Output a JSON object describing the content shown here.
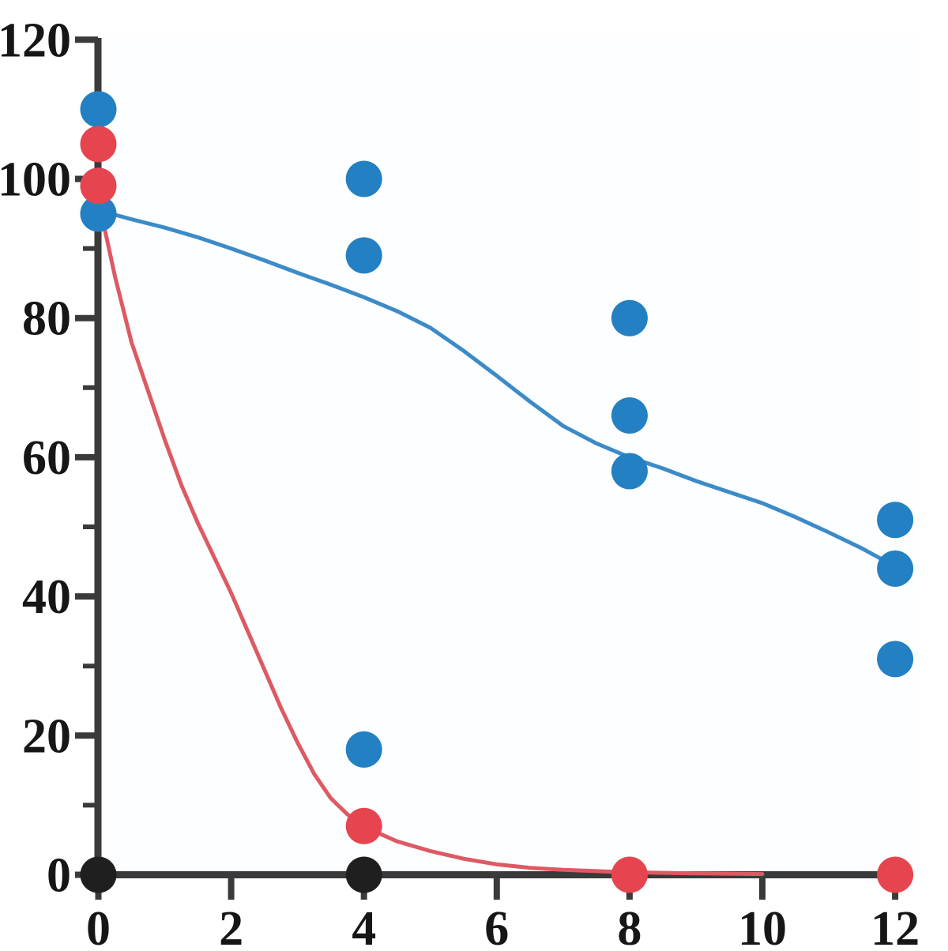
{
  "chart_data": {
    "type": "scatter",
    "title": "",
    "xlabel": "",
    "ylabel": "",
    "xlim": [
      0,
      12
    ],
    "ylim": [
      0,
      120
    ],
    "grid": false,
    "legend": null,
    "x_ticks": {
      "major": [
        0,
        2,
        4,
        6,
        8,
        10,
        12
      ],
      "labels": [
        "0",
        "2",
        "4",
        "6",
        "8",
        "10",
        "12"
      ]
    },
    "y_ticks": {
      "major": [
        0,
        20,
        40,
        60,
        80,
        100,
        120
      ],
      "labels": [
        "0",
        "20",
        "40",
        "60",
        "80",
        "100",
        "120"
      ],
      "minor": [
        10,
        30,
        50,
        70,
        90,
        110
      ]
    },
    "series": [
      {
        "name": "blue-series",
        "marker": "circle",
        "color": "#2380c2",
        "points": [
          [
            0,
            110
          ],
          [
            0,
            95
          ],
          [
            4,
            100
          ],
          [
            4,
            89
          ],
          [
            4,
            18
          ],
          [
            8,
            80
          ],
          [
            8,
            66
          ],
          [
            8,
            58
          ],
          [
            12,
            51
          ],
          [
            12,
            44
          ],
          [
            12,
            31
          ]
        ]
      },
      {
        "name": "red-series",
        "marker": "circle",
        "color": "#e64550",
        "points": [
          [
            0,
            105
          ],
          [
            0,
            99
          ],
          [
            4,
            7
          ],
          [
            8,
            0
          ],
          [
            12,
            0
          ]
        ]
      },
      {
        "name": "black-series",
        "marker": "circle",
        "color": "#1f1f1f",
        "points": [
          [
            0,
            0
          ],
          [
            4,
            0
          ]
        ]
      }
    ],
    "trend_lines": [
      {
        "series": "red-series",
        "model": "one-phase-decay",
        "color": "#dd5a63",
        "points": [
          [
            0,
            97
          ],
          [
            0.25,
            86
          ],
          [
            0.5,
            76.5
          ],
          [
            0.75,
            69.5
          ],
          [
            1,
            62.5
          ],
          [
            1.25,
            56
          ],
          [
            1.5,
            50.5
          ],
          [
            1.75,
            45.5
          ],
          [
            2,
            40.5
          ],
          [
            2.25,
            35
          ],
          [
            2.5,
            29.5
          ],
          [
            2.75,
            24
          ],
          [
            3,
            19
          ],
          [
            3.25,
            14.5
          ],
          [
            3.5,
            11
          ],
          [
            3.75,
            8.7
          ],
          [
            4,
            6.9
          ],
          [
            4.5,
            4.8
          ],
          [
            5,
            3.4
          ],
          [
            5.5,
            2.3
          ],
          [
            6,
            1.5
          ],
          [
            6.5,
            1.0
          ],
          [
            7,
            0.7
          ],
          [
            8,
            0.35
          ],
          [
            9,
            0.2
          ],
          [
            10,
            0.1
          ]
        ]
      },
      {
        "series": "blue-series",
        "model": "exponential-decay",
        "color": "#3c8bc8",
        "points": [
          [
            0,
            95.5
          ],
          [
            0.5,
            94.2
          ],
          [
            1,
            93
          ],
          [
            1.5,
            91.6
          ],
          [
            2,
            90
          ],
          [
            2.5,
            88.3
          ],
          [
            3,
            86.5
          ],
          [
            3.5,
            84.8
          ],
          [
            4,
            83
          ],
          [
            4.5,
            81
          ],
          [
            5,
            78.6
          ],
          [
            5.5,
            75.3
          ],
          [
            6,
            71.7
          ],
          [
            6.5,
            68
          ],
          [
            7,
            64.5
          ],
          [
            7.5,
            62
          ],
          [
            8,
            60
          ],
          [
            8.5,
            58.4
          ],
          [
            9,
            56.6
          ],
          [
            9.5,
            55
          ],
          [
            10,
            53.4
          ],
          [
            10.5,
            51.4
          ],
          [
            11,
            49.2
          ],
          [
            11.5,
            46.9
          ],
          [
            12,
            44.3
          ]
        ]
      }
    ],
    "colors": {
      "axis": "#3a3a3a",
      "tick_label": "#161616",
      "background": "#ffffff"
    }
  }
}
